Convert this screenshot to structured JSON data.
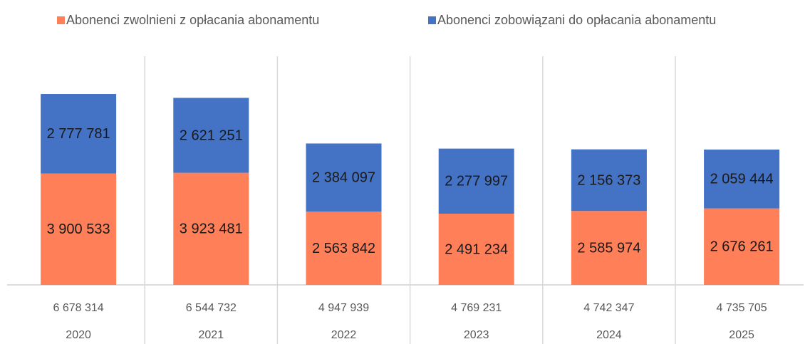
{
  "chart_data": {
    "type": "stacked_bar",
    "categories": [
      "2020",
      "2021",
      "2022",
      "2023",
      "2024",
      "2025"
    ],
    "series": [
      {
        "name": "Abonenci zwolnieni z opłacania abonamentu",
        "color": "#ff7f59",
        "values": [
          3900533,
          3923481,
          2563842,
          2491234,
          2585974,
          2676261
        ],
        "value_labels": [
          "3 900 533",
          "3 923 481",
          "2 563 842",
          "2 491 234",
          "2 585 974",
          "2 676 261"
        ]
      },
      {
        "name": "Abonenci zobowiązani do opłacania abonamentu",
        "color": "#4472c4",
        "values": [
          2777781,
          2621251,
          2384097,
          2277997,
          2156373,
          2059444
        ],
        "value_labels": [
          "2 777 781",
          "2 621 251",
          "2 384 097",
          "2 277 997",
          "2 156 373",
          "2 059 444"
        ]
      }
    ],
    "totals": [
      {
        "value": 6678314,
        "label": "6 678 314"
      },
      {
        "value": 6544732,
        "label": "6 544 732"
      },
      {
        "value": 4947939,
        "label": "4 947 939"
      },
      {
        "value": 4769231,
        "label": "4 769 231"
      },
      {
        "value": 4742347,
        "label": "4 742 347"
      },
      {
        "value": 4735705,
        "label": "4 735 705"
      }
    ],
    "ylim": [
      0,
      8000000
    ],
    "legend": "top"
  }
}
